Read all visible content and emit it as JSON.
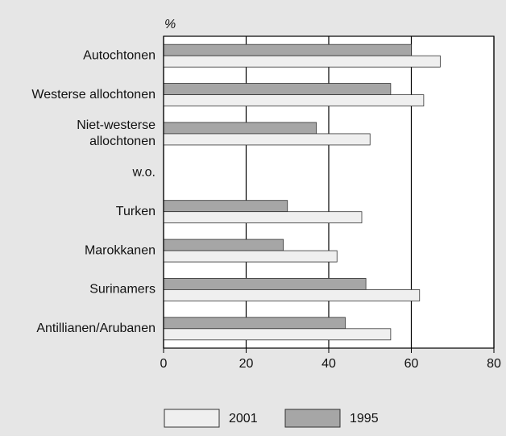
{
  "chart_data": {
    "type": "hbar",
    "ylabel": "%",
    "categories": [
      "Autochtonen",
      "Westerse allochtonen",
      "Niet-westerse\nallochtonen",
      "w.o.",
      "Turken",
      "Marokkanen",
      "Surinamers",
      "Antillianen/Arubanen"
    ],
    "series": [
      {
        "name": "1995",
        "color": "#a6a6a6",
        "values": [
          60,
          55,
          37,
          null,
          30,
          29,
          49,
          44
        ]
      },
      {
        "name": "2001",
        "color": "#efefef",
        "values": [
          67,
          63,
          50,
          null,
          48,
          42,
          62,
          55
        ]
      }
    ],
    "xlim": [
      0,
      80
    ],
    "xticks": [
      0,
      20,
      40,
      60,
      80
    ],
    "grid": true
  }
}
